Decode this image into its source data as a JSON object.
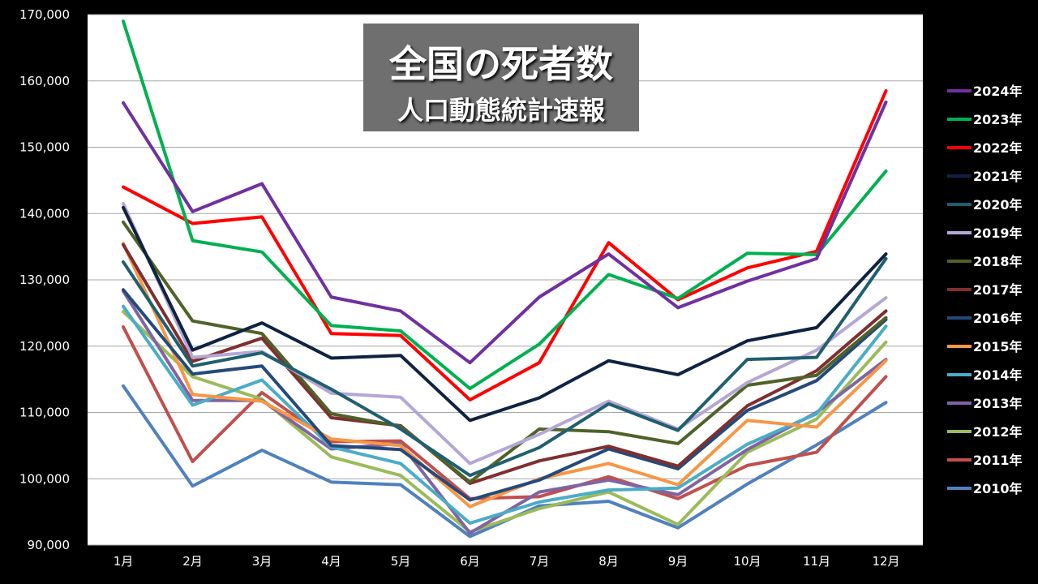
{
  "chart_data": {
    "type": "line",
    "title": "全国の死者数",
    "subtitle": "人口動態統計速報",
    "xlabel": "",
    "ylabel": "",
    "ylim": [
      90000,
      170000
    ],
    "yticks": [
      90000,
      100000,
      110000,
      120000,
      130000,
      140000,
      150000,
      160000,
      170000
    ],
    "ytick_labels": [
      "90,000",
      "100,000",
      "110,000",
      "120,000",
      "130,000",
      "140,000",
      "150,000",
      "160,000",
      "170,000"
    ],
    "grid": true,
    "legend_position": "right",
    "categories": [
      "1月",
      "2月",
      "3月",
      "4月",
      "5月",
      "6月",
      "7月",
      "8月",
      "9月",
      "10月",
      "11月",
      "12月"
    ],
    "series": [
      {
        "name": "2024年",
        "color": "#7030a0",
        "values": [
          156700,
          140300,
          144500,
          127400,
          125300,
          117500,
          127400,
          133900,
          125800,
          129800,
          133200,
          156800
        ]
      },
      {
        "name": "2023年",
        "color": "#00b050",
        "values": [
          169000,
          135900,
          134200,
          123100,
          122300,
          113600,
          120300,
          130800,
          127200,
          134000,
          133800,
          146400
        ]
      },
      {
        "name": "2022年",
        "color": "#ff0000",
        "values": [
          144000,
          138500,
          139500,
          121900,
          121600,
          111900,
          117500,
          135600,
          127000,
          131800,
          134300,
          158500
        ]
      },
      {
        "name": "2021年",
        "color": "#0f2240",
        "values": [
          140900,
          119400,
          123500,
          118200,
          118600,
          108800,
          112200,
          117800,
          115700,
          120800,
          122800,
          133900
        ]
      },
      {
        "name": "2020年",
        "color": "#1f5f6f",
        "values": [
          132700,
          117000,
          119000,
          113500,
          107500,
          100500,
          104700,
          111300,
          107300,
          118000,
          118300,
          133200
        ]
      },
      {
        "name": "2019年",
        "color": "#b4a7d6",
        "values": [
          141500,
          118300,
          119200,
          112900,
          112300,
          102300,
          106700,
          111700,
          107500,
          114500,
          119400,
          127300
        ]
      },
      {
        "name": "2018年",
        "color": "#4f6228",
        "values": [
          138700,
          123800,
          121900,
          109800,
          107900,
          99500,
          107500,
          107100,
          105300,
          114100,
          115600,
          124300
        ]
      },
      {
        "name": "2017年",
        "color": "#7f2f2f",
        "values": [
          135300,
          117700,
          121200,
          109200,
          108000,
          99300,
          102700,
          104900,
          101900,
          111000,
          116300,
          125300
        ]
      },
      {
        "name": "2016年",
        "color": "#244a7a",
        "values": [
          128500,
          115800,
          117000,
          105000,
          104400,
          96800,
          99800,
          104500,
          101500,
          110300,
          114800,
          124000
        ]
      },
      {
        "name": "2015年",
        "color": "#f79646",
        "values": [
          135500,
          112700,
          111700,
          106000,
          105000,
          95800,
          100000,
          102300,
          99100,
          108800,
          107800,
          117800
        ]
      },
      {
        "name": "2014年",
        "color": "#4bacc6",
        "values": [
          126000,
          111100,
          114900,
          104800,
          102300,
          93300,
          96500,
          98300,
          98600,
          105200,
          109800,
          123000
        ]
      },
      {
        "name": "2013年",
        "color": "#8064a2",
        "values": [
          128300,
          111800,
          111800,
          104500,
          105300,
          91800,
          98000,
          99800,
          97600,
          104400,
          110000,
          118000
        ]
      },
      {
        "name": "2012年",
        "color": "#9bbb59",
        "values": [
          125200,
          115400,
          112000,
          103300,
          100500,
          92000,
          95500,
          98000,
          93100,
          104000,
          109000,
          120600
        ]
      },
      {
        "name": "2011年",
        "color": "#c0504d",
        "values": [
          122900,
          102600,
          113000,
          105600,
          105700,
          97000,
          97300,
          100300,
          97000,
          102000,
          104000,
          115400
        ]
      },
      {
        "name": "2010年",
        "color": "#4f81bd",
        "values": [
          114000,
          98900,
          104300,
          99500,
          99100,
          91300,
          95900,
          96600,
          92600,
          99200,
          105100,
          111500
        ]
      }
    ]
  }
}
